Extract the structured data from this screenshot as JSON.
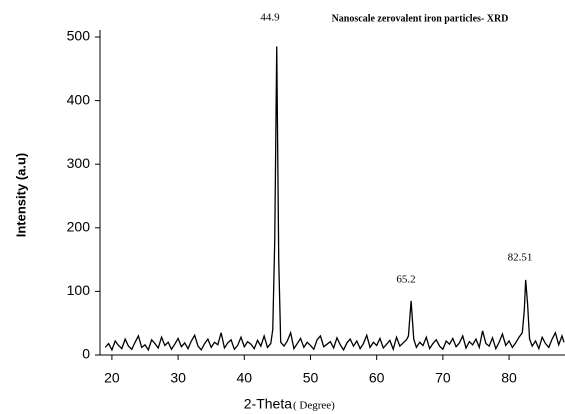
{
  "chart_data": {
    "type": "line",
    "title": "Nanoscale zerovalent iron particles- XRD",
    "x_label": "2-Theta",
    "x_label_unit": "( Degree)",
    "y_label": "Intensity (a.u)",
    "annotations": [
      "44.9",
      "65.2",
      "82.51"
    ],
    "xlim": [
      18.2,
      88.3
    ],
    "ylim": [
      0,
      500
    ],
    "xticks": [
      20,
      30,
      40,
      50,
      60,
      70,
      80
    ],
    "yticks": [
      0,
      100,
      200,
      300,
      400,
      500
    ],
    "grid": false,
    "series": [
      {
        "color": "#000000",
        "x": [
          19,
          19.5,
          20,
          20.5,
          21,
          21.5,
          22,
          22.5,
          23,
          23.5,
          24,
          24.5,
          25,
          25.5,
          26,
          26.5,
          27,
          27.5,
          28,
          28.5,
          29,
          29.5,
          30,
          30.5,
          31,
          31.5,
          32,
          32.5,
          33,
          33.5,
          34,
          34.5,
          35,
          35.5,
          36,
          36.5,
          37,
          37.5,
          38,
          38.5,
          39,
          39.5,
          40,
          40.5,
          41,
          41.5,
          42,
          42.5,
          43,
          43.5,
          44,
          44.3,
          44.6,
          44.9,
          45.2,
          45.5,
          46,
          46.5,
          47,
          47.5,
          48,
          48.5,
          49,
          49.5,
          50,
          50.5,
          51,
          51.5,
          52,
          52.5,
          53,
          53.5,
          54,
          54.5,
          55,
          55.5,
          56,
          56.5,
          57,
          57.5,
          58,
          58.5,
          59,
          59.5,
          60,
          60.5,
          61,
          61.5,
          62,
          62.5,
          63,
          63.5,
          64,
          64.5,
          64.8,
          65.2,
          65.6,
          66,
          66.5,
          67,
          67.5,
          68,
          68.5,
          69,
          69.5,
          70,
          70.5,
          71,
          71.5,
          72,
          72.5,
          73,
          73.5,
          74,
          74.5,
          75,
          75.5,
          76,
          76.5,
          77,
          77.5,
          78,
          78.5,
          79,
          79.5,
          80,
          80.5,
          81,
          81.5,
          82,
          82.3,
          82.51,
          82.8,
          83.1,
          83.5,
          84,
          84.5,
          85,
          85.5,
          86,
          86.5,
          87,
          87.5,
          88,
          88.3
        ],
        "values": [
          12,
          18,
          8,
          22,
          15,
          10,
          25,
          14,
          9,
          20,
          30,
          12,
          16,
          8,
          24,
          18,
          11,
          28,
          15,
          20,
          9,
          17,
          26,
          13,
          19,
          10,
          22,
          31,
          14,
          8,
          18,
          25,
          12,
          20,
          16,
          35,
          11,
          19,
          24,
          9,
          15,
          28,
          13,
          21,
          17,
          10,
          23,
          14,
          30,
          12,
          18,
          40,
          180,
          485,
          150,
          20,
          14,
          22,
          35,
          10,
          18,
          26,
          12,
          20,
          15,
          9,
          24,
          30,
          13,
          17,
          21,
          11,
          27,
          16,
          8,
          19,
          25,
          14,
          22,
          10,
          18,
          31,
          12,
          20,
          15,
          26,
          11,
          17,
          23,
          9,
          28,
          14,
          19,
          24,
          30,
          85,
          25,
          12,
          20,
          15,
          28,
          10,
          18,
          24,
          14,
          9,
          22,
          17,
          26,
          13,
          19,
          30,
          11,
          21,
          16,
          25,
          12,
          38,
          18,
          14,
          27,
          10,
          20,
          33,
          15,
          22,
          12,
          19,
          28,
          35,
          70,
          118,
          80,
          25,
          14,
          22,
          10,
          28,
          18,
          12,
          25,
          35,
          16,
          30,
          20
        ]
      }
    ]
  }
}
